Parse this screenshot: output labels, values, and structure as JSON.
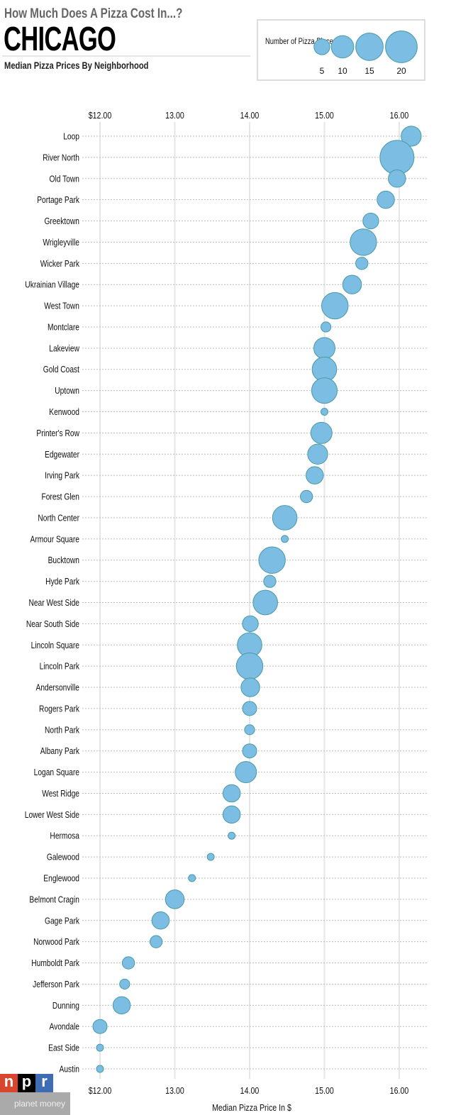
{
  "header": {
    "kicker": "How Much Does A Pizza Cost In...?",
    "title": "CHICAGO",
    "subtitle": "Median Pizza Prices By Neighborhood"
  },
  "legend": {
    "title": "Number of Pizza Places",
    "sizes": [
      "5",
      "10",
      "15",
      "20"
    ]
  },
  "logo": {
    "npr": [
      "n",
      "p",
      "r"
    ],
    "planet_money": "planet money"
  },
  "colors": {
    "bubble": "#7bbde3",
    "bubble_stroke": "#4a9aa3",
    "grid": "#e6e6e6",
    "row_line": "#bbbbbb"
  },
  "chart_data": {
    "type": "scatter",
    "title": "",
    "xlabel": "Median Pizza Price In $",
    "ylabel": "",
    "xlim": [
      11.8,
      16.4
    ],
    "xticks": [
      12,
      13,
      14,
      15,
      16
    ],
    "xtick_labels": [
      "$12.00",
      "13.00",
      "14.00",
      "15.00",
      "16.00"
    ],
    "grid": true,
    "size_variable": "Number of Pizza Places",
    "points": [
      {
        "name": "Loop",
        "price": 16.16,
        "count": 8
      },
      {
        "name": "River North",
        "price": 15.97,
        "count": 23
      },
      {
        "name": "Old Town",
        "price": 15.97,
        "count": 6
      },
      {
        "name": "Portage Park",
        "price": 15.82,
        "count": 6
      },
      {
        "name": "Greektown",
        "price": 15.62,
        "count": 5
      },
      {
        "name": "Wrigleyville",
        "price": 15.52,
        "count": 14
      },
      {
        "name": "Wicker Park",
        "price": 15.5,
        "count": 3
      },
      {
        "name": "Ukrainian Village",
        "price": 15.37,
        "count": 7
      },
      {
        "name": "West Town",
        "price": 15.14,
        "count": 14
      },
      {
        "name": "Montclare",
        "price": 15.02,
        "count": 2
      },
      {
        "name": "Lakeview",
        "price": 15.0,
        "count": 9
      },
      {
        "name": "Gold Coast",
        "price": 15.0,
        "count": 12
      },
      {
        "name": "Uptown",
        "price": 15.0,
        "count": 13
      },
      {
        "name": "Kenwood",
        "price": 15.0,
        "count": 1
      },
      {
        "name": "Printer's Row",
        "price": 14.96,
        "count": 9
      },
      {
        "name": "Edgewater",
        "price": 14.91,
        "count": 8
      },
      {
        "name": "Irving Park",
        "price": 14.87,
        "count": 6
      },
      {
        "name": "Forest Glen",
        "price": 14.76,
        "count": 3
      },
      {
        "name": "North Center",
        "price": 14.47,
        "count": 12
      },
      {
        "name": "Armour Square",
        "price": 14.47,
        "count": 1
      },
      {
        "name": "Bucktown",
        "price": 14.3,
        "count": 14
      },
      {
        "name": "Hyde Park",
        "price": 14.27,
        "count": 3
      },
      {
        "name": "Near West Side",
        "price": 14.21,
        "count": 12
      },
      {
        "name": "Near South Side",
        "price": 14.01,
        "count": 5
      },
      {
        "name": "Lincoln Square",
        "price": 14.0,
        "count": 12
      },
      {
        "name": "Lincoln Park",
        "price": 14.0,
        "count": 14
      },
      {
        "name": "Andersonville",
        "price": 14.01,
        "count": 7
      },
      {
        "name": "Rogers Park",
        "price": 14.0,
        "count": 4
      },
      {
        "name": "North Park",
        "price": 14.0,
        "count": 2
      },
      {
        "name": "Albany Park",
        "price": 14.0,
        "count": 4
      },
      {
        "name": "Logan Square",
        "price": 13.95,
        "count": 9
      },
      {
        "name": "West Ridge",
        "price": 13.76,
        "count": 6
      },
      {
        "name": "Lower West Side",
        "price": 13.76,
        "count": 6
      },
      {
        "name": "Hermosa",
        "price": 13.76,
        "count": 1
      },
      {
        "name": "Galewood",
        "price": 13.48,
        "count": 1
      },
      {
        "name": "Englewood",
        "price": 13.23,
        "count": 1
      },
      {
        "name": "Belmont Cragin",
        "price": 13.0,
        "count": 7
      },
      {
        "name": "Gage Park",
        "price": 12.81,
        "count": 6
      },
      {
        "name": "Norwood Park",
        "price": 12.75,
        "count": 3
      },
      {
        "name": "Humboldt Park",
        "price": 12.38,
        "count": 3
      },
      {
        "name": "Jefferson Park",
        "price": 12.33,
        "count": 2
      },
      {
        "name": "Dunning",
        "price": 12.29,
        "count": 6
      },
      {
        "name": "Avondale",
        "price": 12.0,
        "count": 4
      },
      {
        "name": "East Side",
        "price": 12.0,
        "count": 1
      },
      {
        "name": "Austin",
        "price": 12.0,
        "count": 1
      }
    ]
  }
}
